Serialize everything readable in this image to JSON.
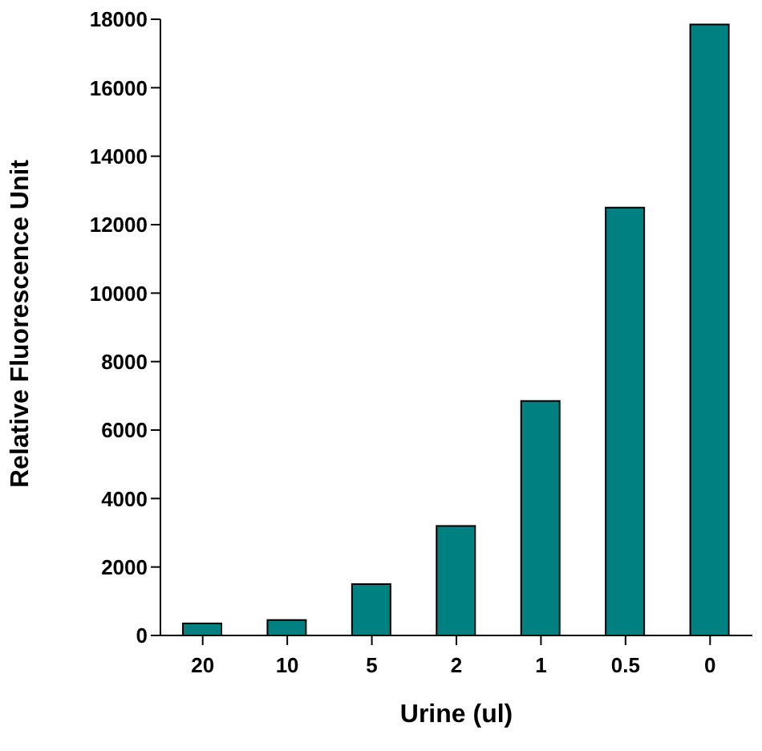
{
  "chart_data": {
    "type": "bar",
    "xlabel": "Urine (ul)",
    "ylabel": "Relative Fluorescence Unit",
    "categories": [
      "20",
      "10",
      "5",
      "2",
      "1",
      "0.5",
      "0"
    ],
    "values": [
      350,
      450,
      1500,
      3200,
      6850,
      12500,
      17850
    ],
    "color": "#008080",
    "ylim": [
      0,
      18000
    ],
    "yticks": [
      0,
      2000,
      4000,
      6000,
      8000,
      10000,
      12000,
      14000,
      16000,
      18000
    ],
    "grid": false,
    "legend": false
  }
}
